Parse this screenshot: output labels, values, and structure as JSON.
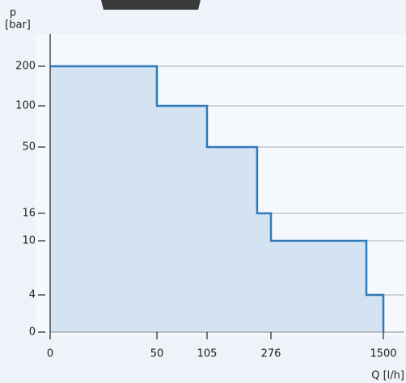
{
  "chart_data": {
    "type": "line",
    "y_label_top": "p",
    "y_label_unit": "[bar]",
    "x_label": "Q [l/h]",
    "x": [
      0,
      50,
      50,
      105,
      105,
      239,
      239,
      276,
      276,
      1315,
      1315,
      1500,
      1500
    ],
    "series": [
      {
        "color": "#2f7ab8",
        "fill": "#d4e3f2",
        "values": [
          200,
          200,
          100,
          100,
          50,
          50,
          16,
          16,
          10,
          10,
          4,
          4,
          0
        ]
      }
    ],
    "xlim": [
      0,
      1500
    ],
    "ylim": [
      0,
      200
    ],
    "xticks": [
      0,
      50,
      105,
      276,
      1500
    ],
    "yticks": [
      0,
      4,
      10,
      16,
      50,
      100,
      200
    ],
    "grid": true
  }
}
